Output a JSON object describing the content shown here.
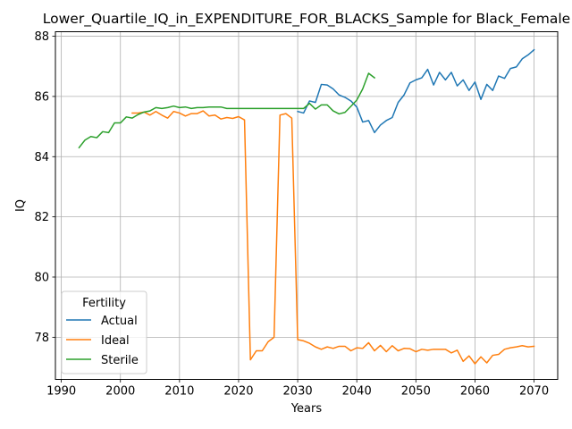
{
  "chart_data": {
    "type": "line",
    "title": "Lower_Quartile_IQ_in_EXPENDITURE_FOR_BLACKS_Sample for Black_Female",
    "xlabel": "Years",
    "ylabel": "IQ",
    "xlim": [
      1989,
      2074
    ],
    "ylim": [
      76.6,
      88.15
    ],
    "xticks": [
      1990,
      2000,
      2010,
      2020,
      2030,
      2040,
      2050,
      2060,
      2070
    ],
    "yticks": [
      78,
      80,
      82,
      84,
      86,
      88
    ],
    "grid": true,
    "legend": {
      "title": "Fertility",
      "position": "lower-left"
    },
    "series": [
      {
        "name": "Actual",
        "color": "#1f77b4",
        "x": [
          2030,
          2031,
          2032,
          2033,
          2034,
          2035,
          2036,
          2037,
          2038,
          2039,
          2040,
          2041,
          2042,
          2043,
          2044,
          2045,
          2046,
          2047,
          2048,
          2049,
          2050,
          2051,
          2052,
          2053,
          2054,
          2055,
          2056,
          2057,
          2058,
          2059,
          2060,
          2061,
          2062,
          2063,
          2064,
          2065,
          2066,
          2067,
          2068,
          2069,
          2070
        ],
        "y": [
          85.5,
          85.45,
          85.85,
          85.8,
          86.4,
          86.38,
          86.25,
          86.05,
          85.97,
          85.85,
          85.65,
          85.15,
          85.2,
          84.8,
          85.05,
          85.2,
          85.3,
          85.8,
          86.05,
          86.45,
          86.55,
          86.62,
          86.9,
          86.38,
          86.8,
          86.55,
          86.8,
          86.35,
          86.55,
          86.2,
          86.48,
          85.9,
          86.4,
          86.2,
          86.68,
          86.6,
          86.93,
          86.98,
          87.25,
          87.38,
          87.55
        ]
      },
      {
        "name": "Ideal",
        "color": "#ff7f0e",
        "x": [
          2002,
          2003,
          2004,
          2005,
          2006,
          2007,
          2008,
          2009,
          2010,
          2011,
          2012,
          2013,
          2014,
          2015,
          2016,
          2017,
          2018,
          2019,
          2020,
          2021,
          2022,
          2023,
          2024,
          2025,
          2026,
          2027,
          2028,
          2029,
          2030,
          2031,
          2032,
          2033,
          2034,
          2035,
          2036,
          2037,
          2038,
          2039,
          2040,
          2041,
          2042,
          2043,
          2044,
          2045,
          2046,
          2047,
          2048,
          2049,
          2050,
          2051,
          2052,
          2053,
          2054,
          2055,
          2056,
          2057,
          2058,
          2059,
          2060,
          2061,
          2062,
          2063,
          2064,
          2065,
          2066,
          2067,
          2068,
          2069,
          2070
        ],
        "y": [
          85.45,
          85.45,
          85.48,
          85.38,
          85.5,
          85.38,
          85.28,
          85.5,
          85.45,
          85.35,
          85.43,
          85.43,
          85.52,
          85.35,
          85.38,
          85.25,
          85.3,
          85.27,
          85.33,
          85.22,
          77.25,
          77.55,
          77.55,
          77.85,
          78.0,
          85.38,
          85.43,
          85.28,
          77.92,
          77.88,
          77.8,
          77.68,
          77.6,
          77.68,
          77.63,
          77.7,
          77.7,
          77.55,
          77.65,
          77.63,
          77.82,
          77.55,
          77.73,
          77.52,
          77.72,
          77.55,
          77.63,
          77.62,
          77.52,
          77.6,
          77.57,
          77.6,
          77.6,
          77.6,
          77.48,
          77.57,
          77.2,
          77.38,
          77.12,
          77.35,
          77.15,
          77.4,
          77.43,
          77.6,
          77.65,
          77.68,
          77.72,
          77.68,
          77.7
        ]
      },
      {
        "name": "Sterile",
        "color": "#2ca02c",
        "x": [
          1993,
          1994,
          1995,
          1996,
          1997,
          1998,
          1999,
          2000,
          2001,
          2002,
          2003,
          2004,
          2005,
          2006,
          2007,
          2008,
          2009,
          2010,
          2011,
          2012,
          2013,
          2014,
          2015,
          2016,
          2017,
          2018,
          2019,
          2020,
          2021,
          2022,
          2023,
          2024,
          2025,
          2026,
          2027,
          2028,
          2029,
          2030,
          2031,
          2032,
          2033,
          2034,
          2035,
          2036,
          2037,
          2038,
          2039,
          2040,
          2041,
          2042,
          2043
        ],
        "y": [
          84.3,
          84.55,
          84.67,
          84.63,
          84.83,
          84.8,
          85.12,
          85.12,
          85.32,
          85.28,
          85.4,
          85.48,
          85.52,
          85.63,
          85.6,
          85.63,
          85.68,
          85.63,
          85.65,
          85.6,
          85.63,
          85.63,
          85.65,
          85.65,
          85.65,
          85.6,
          85.6,
          85.6,
          85.6,
          85.6,
          85.6,
          85.6,
          85.6,
          85.6,
          85.6,
          85.6,
          85.6,
          85.6,
          85.6,
          85.77,
          85.58,
          85.72,
          85.72,
          85.52,
          85.42,
          85.47,
          85.67,
          85.88,
          86.25,
          86.77,
          86.62
        ]
      }
    ]
  }
}
